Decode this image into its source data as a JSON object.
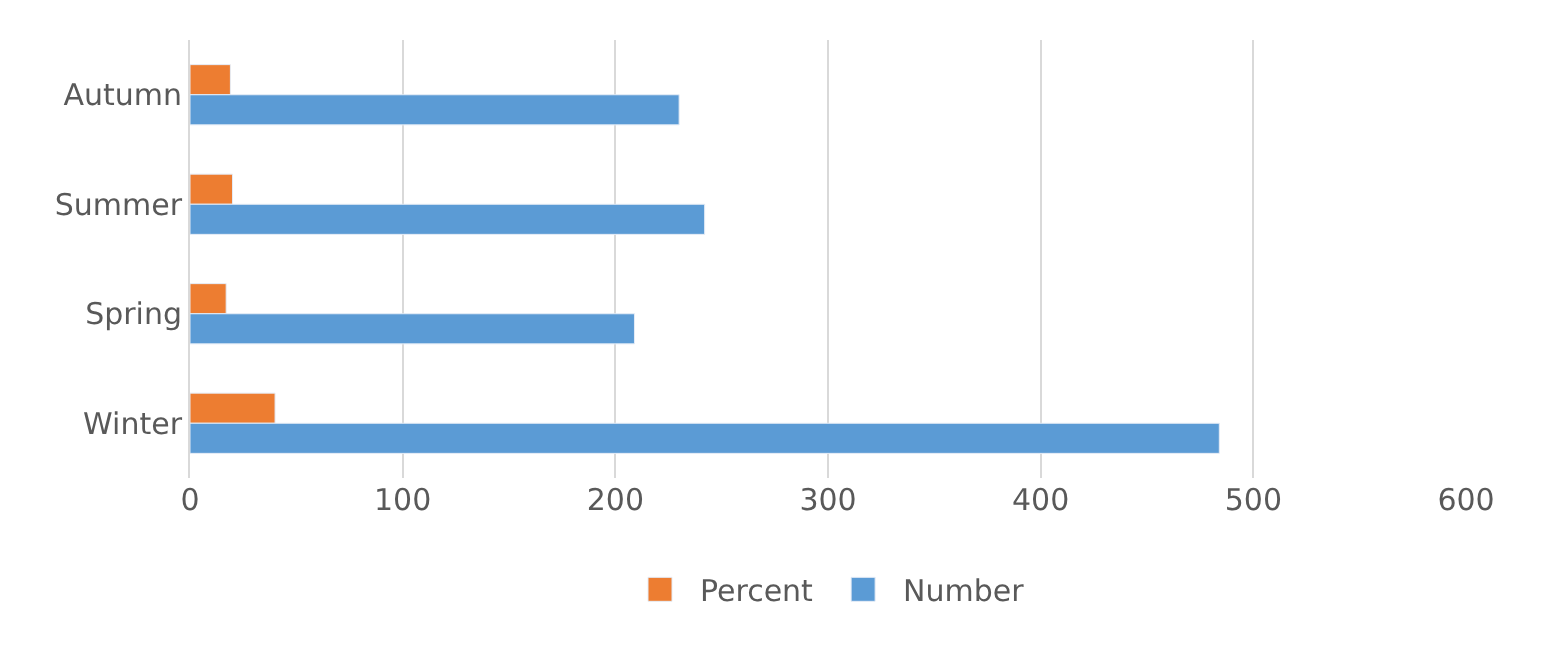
{
  "chart_data": {
    "type": "bar",
    "orientation": "horizontal",
    "categories": [
      "Autumn",
      "Summer",
      "Spring",
      "Winter"
    ],
    "series": [
      {
        "name": "Percent",
        "color": "#ed7d31",
        "values": [
          19,
          20,
          17,
          40
        ]
      },
      {
        "name": "Number",
        "color": "#5b9bd5",
        "values": [
          230,
          242,
          209,
          484
        ]
      }
    ],
    "xlim": [
      0,
      600
    ],
    "xticks": [
      0,
      100,
      200,
      300,
      400,
      500,
      600
    ],
    "grid": "x",
    "legend": "bottom"
  }
}
